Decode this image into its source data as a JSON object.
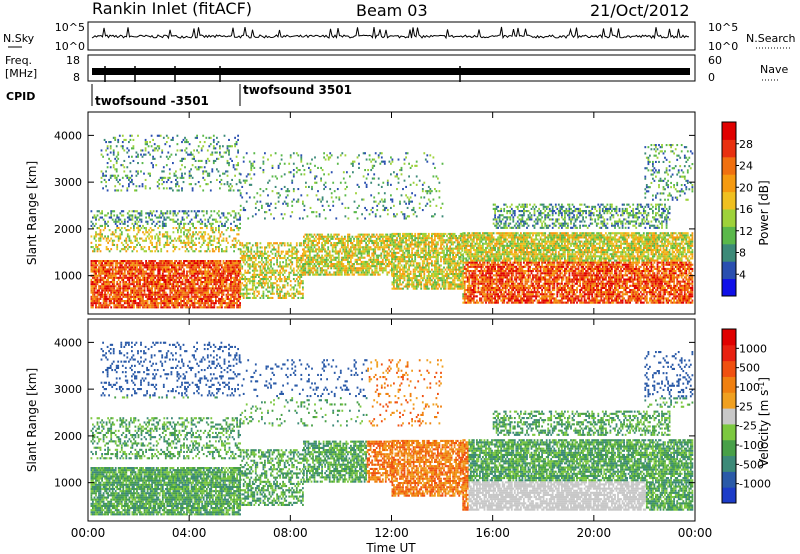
{
  "header": {
    "station": "Rankin Inlet (fitACF)",
    "beam": "Beam 03",
    "date": "21/Oct/2012"
  },
  "status_panels": {
    "nsky": {
      "label": "N.Sky",
      "ticks": [
        "10^5",
        "10^0"
      ],
      "right_label": "N.Search",
      "right_ticks": [
        "10^5",
        "10^0"
      ]
    },
    "freq": {
      "label_top": "Freq.",
      "label_bottom": "[MHz]",
      "ticks": [
        "18",
        "8"
      ],
      "right_label": "Nave",
      "right_ticks": [
        "60",
        "0"
      ]
    },
    "cpid": {
      "label": "CPID",
      "modes": [
        "twofsound -3501",
        "twofsound 3501"
      ]
    }
  },
  "chart_data": [
    {
      "type": "heatmap",
      "name": "power",
      "ylabel": "Slant Range [km]",
      "ylim": [
        180,
        4500
      ],
      "yticks": [
        "1000",
        "2000",
        "3000",
        "4000"
      ],
      "xlim_hours": [
        0,
        24
      ],
      "colorbar": {
        "label": "Power [dB]",
        "ticks": [
          "4",
          "8",
          "12",
          "16",
          "20",
          "24",
          "28"
        ],
        "colors": [
          "#1010e8",
          "#2a4fb0",
          "#3c8a78",
          "#5ab84a",
          "#9ed23a",
          "#f0c020",
          "#f59a10",
          "#f07010",
          "#e83010",
          "#e00000"
        ]
      }
    },
    {
      "type": "heatmap",
      "name": "velocity",
      "ylabel": "Slant Range [km]",
      "ylim": [
        180,
        4500
      ],
      "yticks": [
        "1000",
        "2000",
        "3000",
        "4000"
      ],
      "xlim_hours": [
        0,
        24
      ],
      "xlabel": "Time UT",
      "xticks": [
        "00:00",
        "04:00",
        "08:00",
        "12:00",
        "16:00",
        "20:00",
        "00:00"
      ],
      "colorbar": {
        "label": "Velocity [m s",
        "label_sup": "-1",
        "label_end": "]",
        "ticks": [
          "1000",
          "500",
          "100",
          "25",
          "-25",
          "-100",
          "-500",
          "-1000"
        ],
        "colors": [
          "#1c3cc8",
          "#2a5aa8",
          "#3c8a78",
          "#48a048",
          "#7cc840",
          "#c8c8c8",
          "#f0a020",
          "#f08010",
          "#f05010",
          "#e82010",
          "#e00000"
        ]
      }
    }
  ]
}
